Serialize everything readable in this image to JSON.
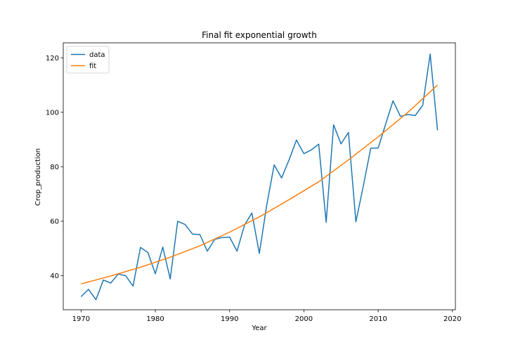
{
  "chart_data": {
    "type": "line",
    "title": "Final fit exponential growth",
    "xlabel": "Year",
    "ylabel": "Crop_production",
    "xlim": [
      1967.6,
      2020.4
    ],
    "ylim": [
      27.5,
      125.5
    ],
    "xticks": [
      1970,
      1980,
      1990,
      2000,
      2010,
      2020
    ],
    "yticks": [
      40,
      60,
      80,
      100,
      120
    ],
    "grid": false,
    "legend_position": "top-left",
    "series": [
      {
        "name": "data",
        "color": "#1f77b4",
        "x": [
          1970,
          1971,
          1972,
          1973,
          1974,
          1975,
          1976,
          1977,
          1978,
          1979,
          1980,
          1981,
          1982,
          1983,
          1984,
          1985,
          1986,
          1987,
          1988,
          1989,
          1990,
          1991,
          1992,
          1993,
          1994,
          1995,
          1996,
          1997,
          1998,
          1999,
          2000,
          2001,
          2002,
          2003,
          2004,
          2005,
          2006,
          2007,
          2008,
          2009,
          2010,
          2011,
          2012,
          2013,
          2014,
          2015,
          2016,
          2017,
          2018
        ],
        "values": [
          32.3,
          35.0,
          31.2,
          38.4,
          37.3,
          40.6,
          40.0,
          36.2,
          50.4,
          48.5,
          40.7,
          50.5,
          38.8,
          60.0,
          58.8,
          55.3,
          55.1,
          49.0,
          53.4,
          54.0,
          54.2,
          49.0,
          58.6,
          63.0,
          48.2,
          66.0,
          80.7,
          75.9,
          82.5,
          89.8,
          84.8,
          86.2,
          88.3,
          59.6,
          95.4,
          88.4,
          92.6,
          59.8,
          73.0,
          86.8,
          86.9,
          95.6,
          104.2,
          98.5,
          99.2,
          98.8,
          102.6,
          121.4,
          93.4
        ]
      },
      {
        "name": "fit",
        "color": "#ff7f0e",
        "x": [
          1970,
          1974,
          1978,
          1982,
          1986,
          1990,
          1994,
          1998,
          2002,
          2006,
          2010,
          2014,
          2018
        ],
        "values": [
          37.0,
          39.9,
          43.1,
          46.8,
          51.0,
          56.0,
          61.6,
          67.9,
          74.5,
          82.5,
          91.0,
          100.0,
          110.0
        ]
      }
    ]
  }
}
